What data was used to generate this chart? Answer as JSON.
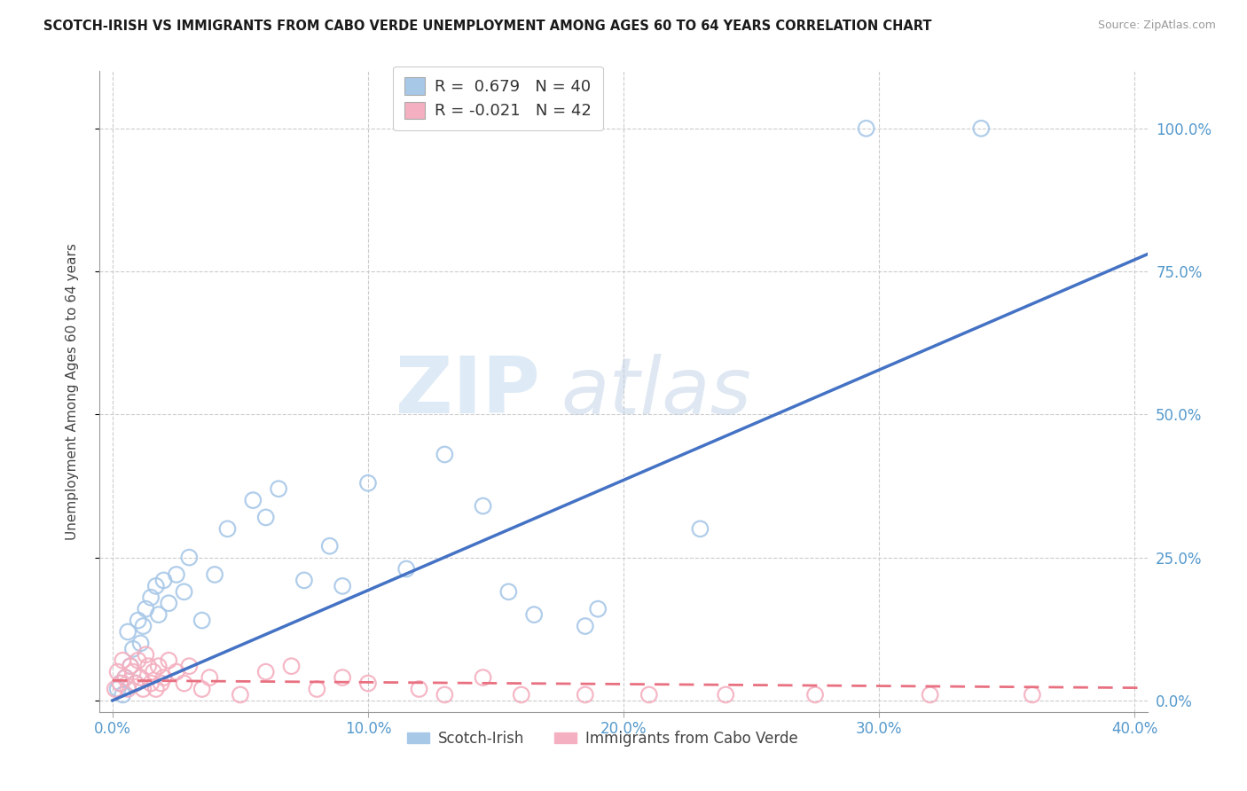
{
  "title": "SCOTCH-IRISH VS IMMIGRANTS FROM CABO VERDE UNEMPLOYMENT AMONG AGES 60 TO 64 YEARS CORRELATION CHART",
  "source": "Source: ZipAtlas.com",
  "ylabel": "Unemployment Among Ages 60 to 64 years",
  "xlim": [
    -0.005,
    0.405
  ],
  "ylim": [
    -0.02,
    1.1
  ],
  "yticks_right": [
    0.0,
    0.25,
    0.5,
    0.75,
    1.0
  ],
  "ytick_right_labels": [
    "0.0%",
    "25.0%",
    "50.0%",
    "75.0%",
    "100.0%"
  ],
  "xticks": [
    0.0,
    0.1,
    0.2,
    0.3,
    0.4
  ],
  "xtick_labels": [
    "0.0%",
    "10.0%",
    "20.0%",
    "30.0%",
    "40.0%"
  ],
  "color_blue": "#a8c8e8",
  "color_pink": "#f4b0c0",
  "trendline_blue": "#4472c4",
  "trendline_pink": "#e87080",
  "legend_label1": "Scotch-Irish",
  "legend_label2": "Immigrants from Cabo Verde",
  "R_blue": "0.679",
  "N_blue": "40",
  "R_pink": "-0.021",
  "N_pink": "42",
  "scotch_irish_x": [
    0.002,
    0.003,
    0.004,
    0.005,
    0.006,
    0.007,
    0.008,
    0.009,
    0.01,
    0.011,
    0.012,
    0.013,
    0.015,
    0.017,
    0.018,
    0.02,
    0.022,
    0.025,
    0.028,
    0.03,
    0.035,
    0.04,
    0.045,
    0.055,
    0.06,
    0.065,
    0.075,
    0.085,
    0.09,
    0.1,
    0.115,
    0.13,
    0.145,
    0.155,
    0.165,
    0.185,
    0.19,
    0.23,
    0.295,
    0.34
  ],
  "scotch_irish_y": [
    0.02,
    0.03,
    0.01,
    0.04,
    0.12,
    0.06,
    0.09,
    0.03,
    0.14,
    0.1,
    0.13,
    0.16,
    0.18,
    0.2,
    0.15,
    0.21,
    0.17,
    0.22,
    0.19,
    0.25,
    0.14,
    0.22,
    0.3,
    0.35,
    0.32,
    0.37,
    0.21,
    0.27,
    0.2,
    0.38,
    0.23,
    0.43,
    0.34,
    0.19,
    0.15,
    0.13,
    0.16,
    0.3,
    1.0,
    1.0
  ],
  "cabo_verde_x": [
    0.001,
    0.002,
    0.003,
    0.004,
    0.005,
    0.006,
    0.007,
    0.008,
    0.009,
    0.01,
    0.011,
    0.012,
    0.013,
    0.014,
    0.015,
    0.016,
    0.017,
    0.018,
    0.019,
    0.02,
    0.022,
    0.025,
    0.028,
    0.03,
    0.035,
    0.038,
    0.05,
    0.06,
    0.07,
    0.08,
    0.09,
    0.1,
    0.12,
    0.13,
    0.145,
    0.16,
    0.185,
    0.21,
    0.24,
    0.275,
    0.32,
    0.36
  ],
  "cabo_verde_y": [
    0.02,
    0.05,
    0.03,
    0.07,
    0.04,
    0.02,
    0.06,
    0.05,
    0.03,
    0.07,
    0.04,
    0.02,
    0.08,
    0.06,
    0.03,
    0.05,
    0.02,
    0.06,
    0.03,
    0.04,
    0.07,
    0.05,
    0.03,
    0.06,
    0.02,
    0.04,
    0.01,
    0.05,
    0.06,
    0.02,
    0.04,
    0.03,
    0.02,
    0.01,
    0.04,
    0.01,
    0.01,
    0.01,
    0.01,
    0.01,
    0.01,
    0.01
  ],
  "trend_blue_x0": 0.0,
  "trend_blue_y0": 0.0,
  "trend_blue_x1": 0.405,
  "trend_blue_y1": 0.78,
  "trend_pink_x0": 0.0,
  "trend_pink_y0": 0.035,
  "trend_pink_x1": 0.405,
  "trend_pink_y1": 0.022
}
